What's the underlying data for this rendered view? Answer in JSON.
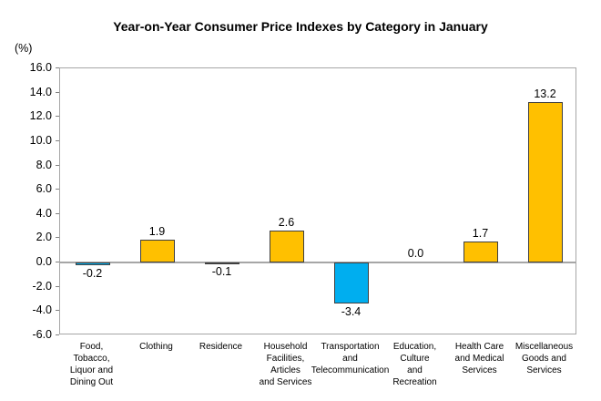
{
  "chart_data": {
    "type": "bar",
    "title": "Year-on-Year Consumer Price Indexes by Category in January",
    "ylabel": "(%)",
    "xlabel": "",
    "ylim": [
      -6.0,
      16.0
    ],
    "ytick_labels": [
      "16.0",
      "14.0",
      "12.0",
      "10.0",
      "8.0",
      "6.0",
      "4.0",
      "2.0",
      "0.0",
      "-2.0",
      "-4.0",
      "-6.0"
    ],
    "categories": [
      "Food, Tobacco, Liquor and Dining Out",
      "Clothing",
      "Residence",
      "Household Facilities, Articles and Services",
      "Transportation and Telecommunication",
      "Education, Culture and Recreation",
      "Health Care and Medical Services",
      "Miscellaneous Goods and Services"
    ],
    "category_lines": [
      [
        "Food,",
        "Tobacco,",
        "Liquor and",
        "Dining Out"
      ],
      [
        "Clothing"
      ],
      [
        "Residence"
      ],
      [
        "Household",
        "Facilities,",
        "Articles",
        "and Services"
      ],
      [
        "Transportation",
        "and",
        "Telecommunication"
      ],
      [
        "Education,",
        "Culture",
        "and",
        "Recreation"
      ],
      [
        "Health Care",
        "and Medical",
        "Services"
      ],
      [
        "Miscellaneous",
        "Goods and",
        "Services"
      ]
    ],
    "values": [
      -0.2,
      1.9,
      -0.1,
      2.6,
      -3.4,
      0.0,
      1.7,
      13.2
    ],
    "value_labels": [
      "-0.2",
      "1.9",
      "-0.1",
      "2.6",
      "-3.4",
      "0.0",
      "1.7",
      "13.2"
    ],
    "positive_color": "#FFC000",
    "negative_color": "#00AEEF",
    "grid": "off",
    "legend": "none"
  }
}
